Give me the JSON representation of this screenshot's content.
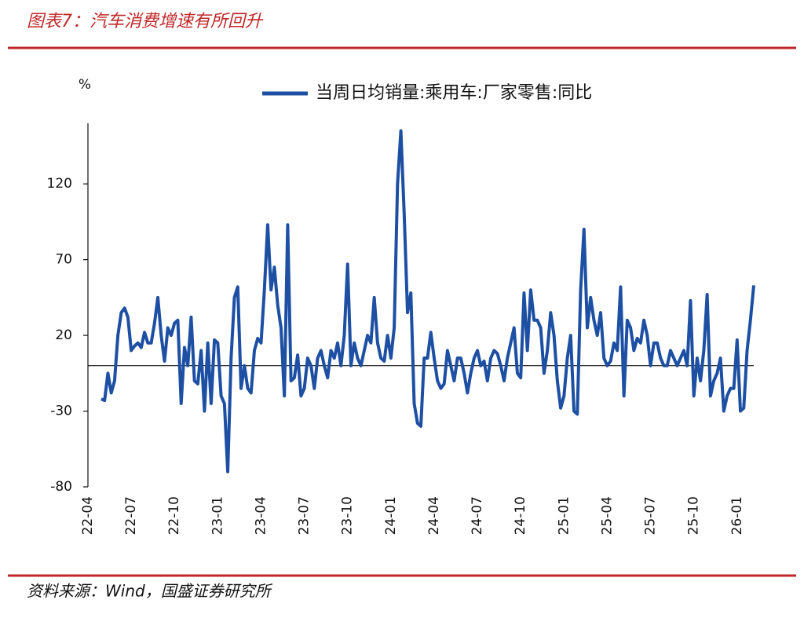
{
  "header": {
    "title": "图表7：汽车消费增速有所回升"
  },
  "chart_data": {
    "type": "line",
    "y_label": "%",
    "categories": [
      "22-04",
      null,
      null,
      null,
      null,
      null,
      null,
      null,
      null,
      null,
      null,
      null,
      null,
      "22-07",
      null,
      null,
      null,
      null,
      null,
      null,
      null,
      null,
      null,
      null,
      null,
      null,
      "22-10",
      null,
      null,
      null,
      null,
      null,
      null,
      null,
      null,
      null,
      null,
      null,
      null,
      "23-01",
      null,
      null,
      null,
      null,
      null,
      null,
      null,
      null,
      null,
      null,
      null,
      null,
      "23-04",
      null,
      null,
      null,
      null,
      null,
      null,
      null,
      null,
      null,
      null,
      null,
      null,
      "23-07",
      null,
      null,
      null,
      null,
      null,
      null,
      null,
      null,
      null,
      null,
      null,
      null,
      "23-10",
      null,
      null,
      null,
      null,
      null,
      null,
      null,
      null,
      null,
      null,
      null,
      null,
      "24-01",
      null,
      null,
      null,
      null,
      null,
      null,
      null,
      null,
      null,
      null,
      null,
      null,
      "24-04",
      null,
      null,
      null,
      null,
      null,
      null,
      null,
      null,
      null,
      null,
      null,
      null,
      "24-07",
      null,
      null,
      null,
      null,
      null,
      null,
      null,
      null,
      null,
      null,
      null,
      null,
      "24-10",
      null,
      null,
      null,
      null,
      null,
      null,
      null,
      null,
      null,
      null,
      null,
      null,
      "25-01",
      null,
      null,
      null,
      null,
      null,
      null,
      null,
      null,
      null,
      null,
      null,
      null,
      "25-04",
      null,
      null,
      null,
      null,
      null,
      null,
      null,
      null,
      null,
      null,
      null,
      null,
      "25-07",
      null,
      null,
      null,
      null,
      null,
      null,
      null,
      null,
      null,
      null,
      null,
      null,
      "25-10",
      null,
      null,
      null,
      null,
      null,
      null,
      null,
      null,
      null,
      null,
      null,
      null,
      "26-01",
      null,
      null,
      null,
      null,
      null
    ],
    "series": [
      {
        "name": "当周日均销量:乘用车:厂家零售:同比",
        "color": "#1d4fa3",
        "values": [
          null,
          null,
          null,
          null,
          -22,
          -23,
          -5,
          -18,
          -10,
          20,
          35,
          38,
          32,
          10,
          13,
          15,
          12,
          22,
          15,
          15,
          28,
          45,
          20,
          3,
          25,
          20,
          28,
          30,
          -25,
          12,
          0,
          32,
          -10,
          -12,
          10,
          -30,
          15,
          -25,
          17,
          15,
          -20,
          -25,
          -70,
          5,
          45,
          52,
          -15,
          0,
          -15,
          -18,
          10,
          18,
          15,
          50,
          93,
          50,
          65,
          40,
          25,
          -20,
          93,
          -10,
          -8,
          7,
          -20,
          -15,
          5,
          0,
          -15,
          5,
          10,
          0,
          -8,
          10,
          5,
          15,
          0,
          20,
          67,
          0,
          15,
          5,
          0,
          10,
          20,
          15,
          45,
          15,
          5,
          3,
          20,
          5,
          25,
          120,
          155,
          100,
          35,
          48,
          -25,
          -38,
          -40,
          5,
          5,
          22,
          5,
          -10,
          -15,
          -12,
          10,
          0,
          -10,
          5,
          5,
          -5,
          -18,
          -5,
          5,
          10,
          0,
          3,
          -10,
          5,
          10,
          8,
          0,
          -10,
          5,
          15,
          25,
          -5,
          -8,
          48,
          10,
          50,
          30,
          30,
          25,
          -5,
          10,
          35,
          20,
          -10,
          -28,
          -20,
          5,
          20,
          -30,
          -32,
          50,
          90,
          25,
          45,
          30,
          20,
          35,
          5,
          0,
          3,
          15,
          10,
          52,
          -20,
          30,
          25,
          10,
          18,
          15,
          30,
          20,
          0,
          15,
          15,
          5,
          0,
          0,
          10,
          5,
          0,
          5,
          10,
          0,
          43,
          -20,
          5,
          -10,
          10,
          47,
          -20,
          -10,
          -5,
          5,
          -30,
          -20,
          -15,
          -15,
          17,
          -30,
          -28,
          10,
          30,
          53
        ]
      }
    ],
    "ylim": [
      -80,
      160
    ],
    "yticks": [
      -80,
      -30,
      20,
      70,
      120
    ],
    "grid": false
  },
  "footer": {
    "source": "资料来源：Wind，国盛证券研究所"
  }
}
